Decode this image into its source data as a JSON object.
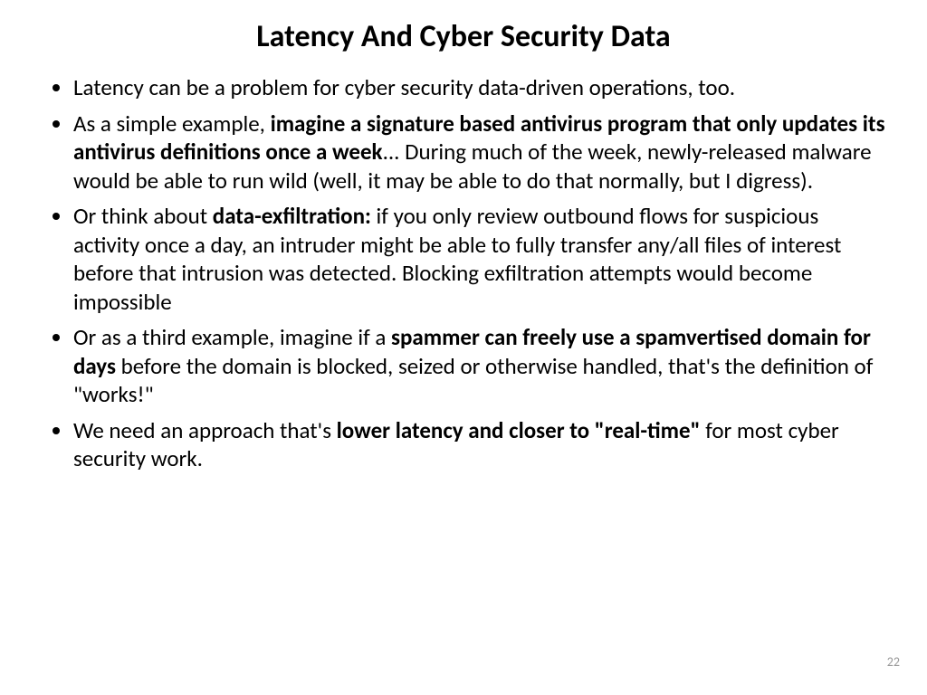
{
  "slide": {
    "title": "Latency And Cyber Security Data",
    "bullets": [
      {
        "segments": [
          {
            "text": "Latency can be a problem for cyber security data-driven operations, too.",
            "bold": false
          }
        ]
      },
      {
        "segments": [
          {
            "text": "As a simple example, ",
            "bold": false
          },
          {
            "text": "imagine a signature based antivirus program that only updates its antivirus definitions once a week",
            "bold": true
          },
          {
            "text": "... During much of the week, newly-released malware would be able to run wild (well, it may be able to do that normally, but I digress).",
            "bold": false
          }
        ]
      },
      {
        "segments": [
          {
            "text": "Or think about ",
            "bold": false
          },
          {
            "text": "data-exfiltration:",
            "bold": true
          },
          {
            "text": " if you only review outbound flows for suspicious activity once a day, an intruder might be able to fully transfer any/all files of interest before that intrusion was detected. Blocking exfiltration attempts would become impossible",
            "bold": false
          }
        ]
      },
      {
        "segments": [
          {
            "text": "Or as a third example, imagine if a ",
            "bold": false
          },
          {
            "text": "spammer can freely use a spamvertised domain for days",
            "bold": true
          },
          {
            "text": " before the domain is blocked, seized or otherwise handled, that's the definition of \"works!\"",
            "bold": false
          }
        ]
      },
      {
        "segments": [
          {
            "text": "We need an approach that's ",
            "bold": false
          },
          {
            "text": "lower latency and closer to \"real-time\"",
            "bold": true
          },
          {
            "text": " for most cyber security work.",
            "bold": false
          }
        ]
      }
    ],
    "page_number": "22"
  },
  "styling": {
    "background_color": "#ffffff",
    "text_color": "#000000",
    "page_number_color": "#989898",
    "title_fontsize": 34,
    "bullet_fontsize": 25,
    "page_number_fontsize": 14,
    "font_family": "Calibri"
  }
}
